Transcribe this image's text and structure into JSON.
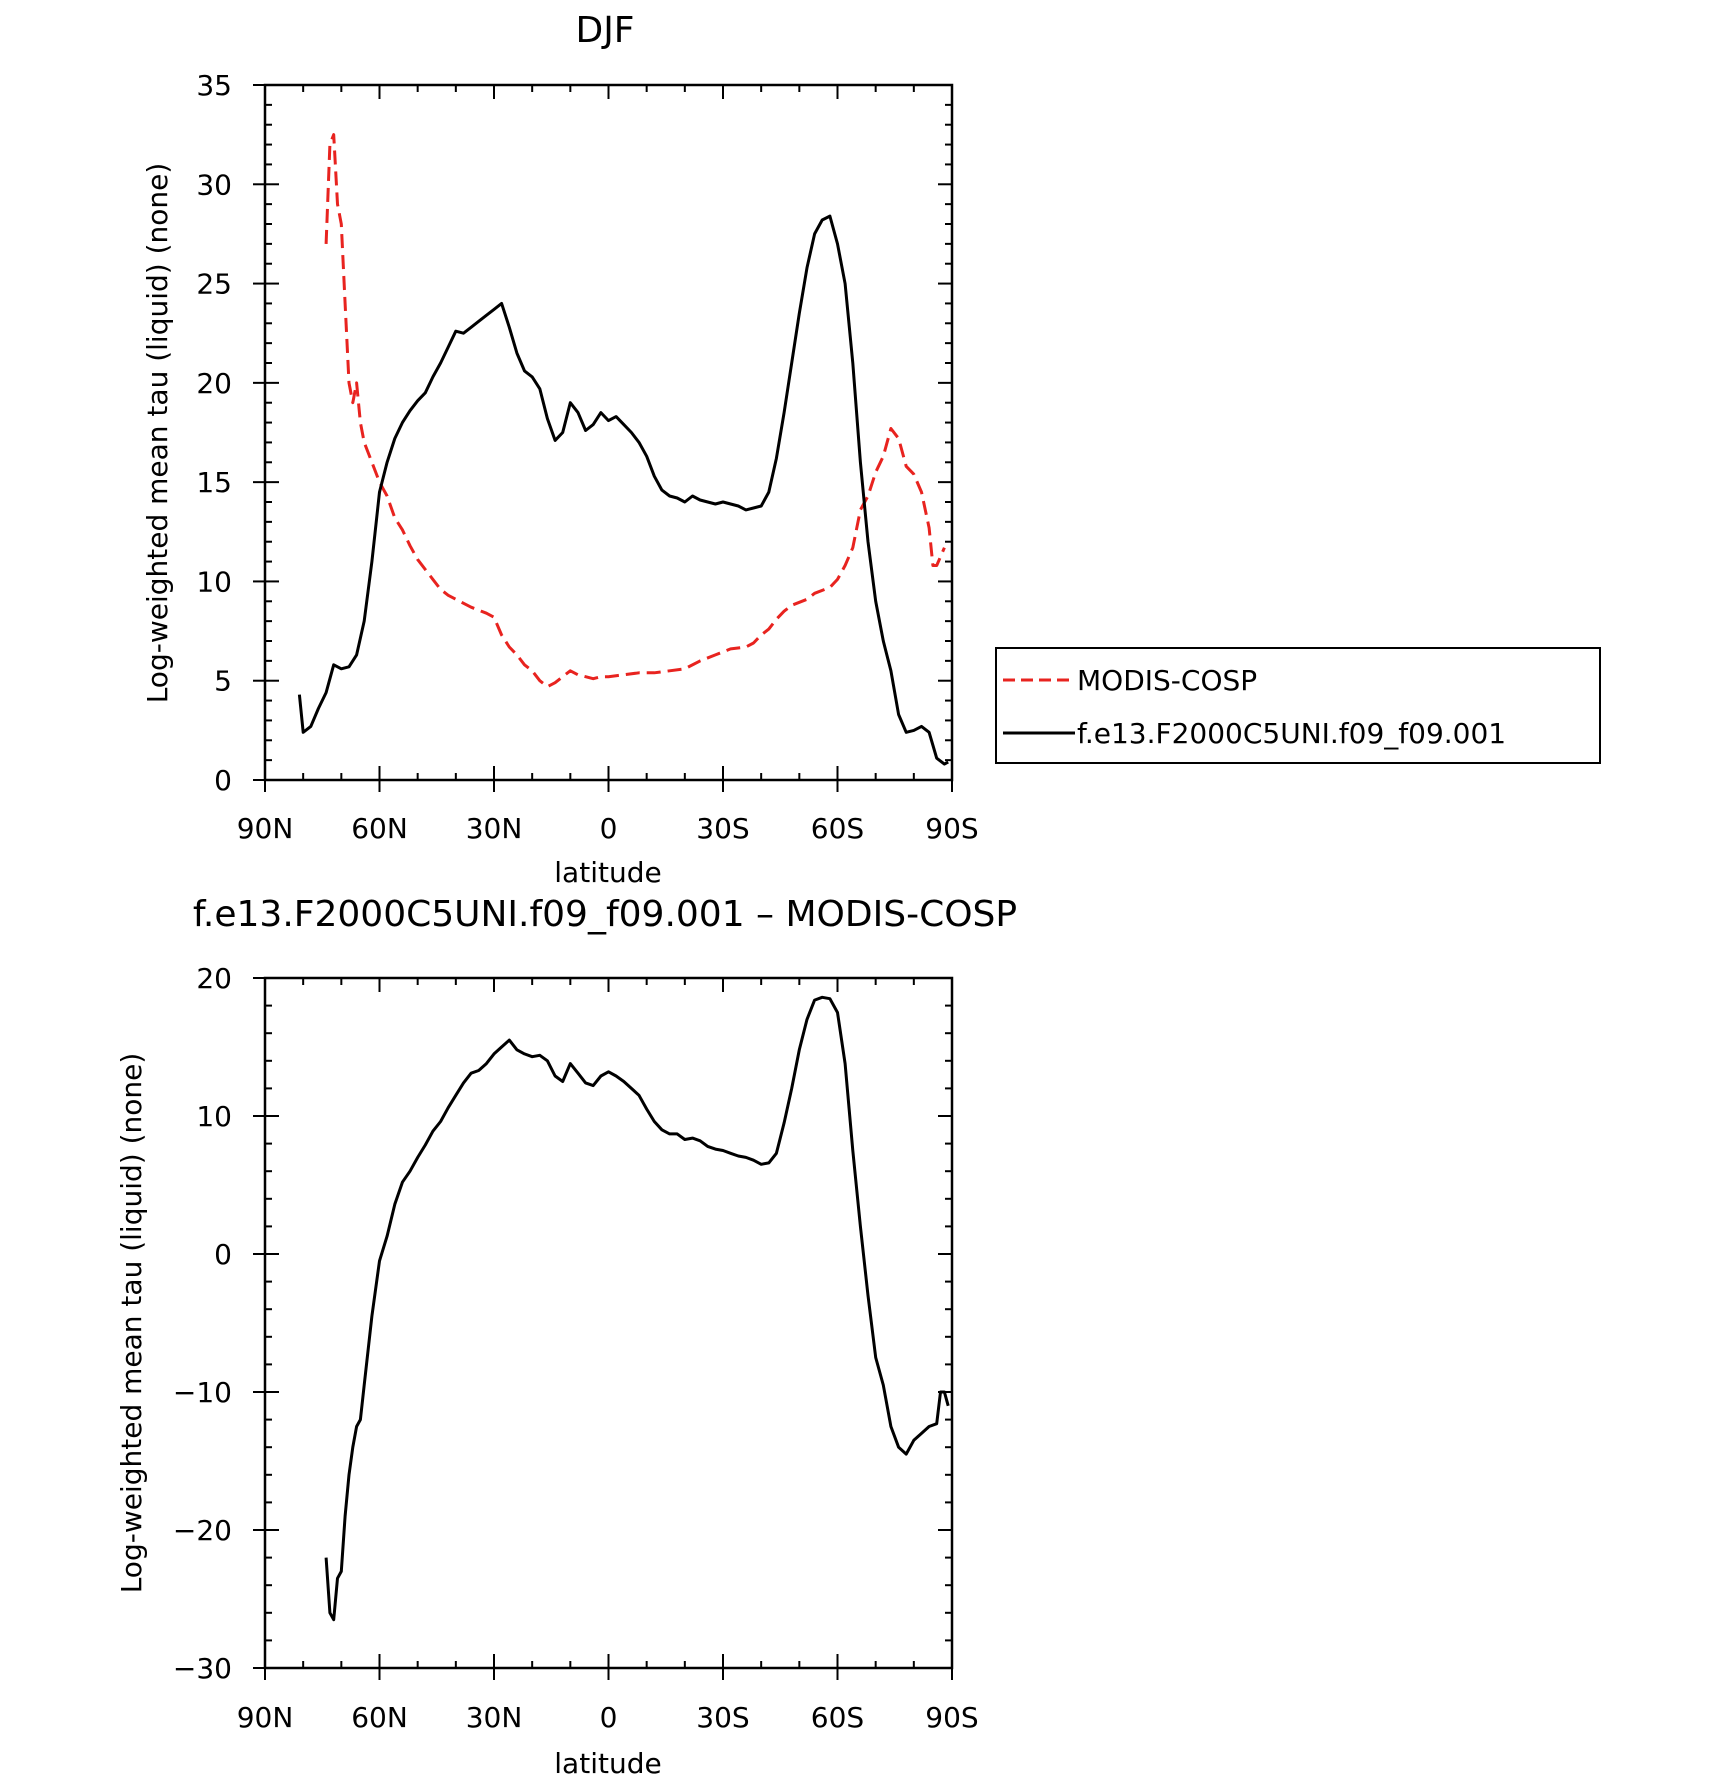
{
  "chart_data": [
    {
      "type": "line",
      "title": "DJF",
      "xlabel": "latitude",
      "ylabel": "Log-weighted mean tau (liquid) (none)",
      "xlim": [
        90,
        -90
      ],
      "ylim": [
        0,
        35
      ],
      "xticks": [
        {
          "value": 90,
          "label": "90N"
        },
        {
          "value": 60,
          "label": "60N"
        },
        {
          "value": 30,
          "label": "30N"
        },
        {
          "value": 0,
          "label": "0"
        },
        {
          "value": -30,
          "label": "30S"
        },
        {
          "value": -60,
          "label": "60S"
        },
        {
          "value": -90,
          "label": "90S"
        }
      ],
      "yticks": [
        0,
        5,
        10,
        15,
        20,
        25,
        30,
        35
      ],
      "legend": [
        {
          "name": "MODIS-COSP",
          "color": "#e8231f",
          "dashed": true
        },
        {
          "name": "f.e13.F2000C5UNI.f09_f09.001",
          "color": "#000000",
          "dashed": false
        }
      ],
      "series": [
        {
          "name": "MODIS-COSP",
          "color": "#e8231f",
          "dashed": true,
          "points": [
            [
              74,
              27
            ],
            [
              73,
              32
            ],
            [
              72,
              32.5
            ],
            [
              71,
              29
            ],
            [
              70,
              28
            ],
            [
              69,
              24
            ],
            [
              68,
              20
            ],
            [
              67,
              19
            ],
            [
              66,
              20
            ],
            [
              65,
              18
            ],
            [
              64,
              17
            ],
            [
              62,
              16
            ],
            [
              60,
              15
            ],
            [
              58,
              14.3
            ],
            [
              56,
              13.2
            ],
            [
              54,
              12.6
            ],
            [
              52,
              11.8
            ],
            [
              50,
              11.1
            ],
            [
              48,
              10.6
            ],
            [
              46,
              10.1
            ],
            [
              44,
              9.6
            ],
            [
              42,
              9.3
            ],
            [
              40,
              9.1
            ],
            [
              36,
              8.7
            ],
            [
              32,
              8.4
            ],
            [
              30,
              8.2
            ],
            [
              28,
              7.3
            ],
            [
              26,
              6.7
            ],
            [
              24,
              6.3
            ],
            [
              22,
              5.8
            ],
            [
              20,
              5.5
            ],
            [
              18,
              5
            ],
            [
              16,
              4.7
            ],
            [
              14,
              4.9
            ],
            [
              12,
              5.2
            ],
            [
              10,
              5.5
            ],
            [
              8,
              5.3
            ],
            [
              6,
              5.2
            ],
            [
              4,
              5.1
            ],
            [
              2,
              5.2
            ],
            [
              0,
              5.2
            ],
            [
              -4,
              5.3
            ],
            [
              -8,
              5.4
            ],
            [
              -12,
              5.4
            ],
            [
              -16,
              5.5
            ],
            [
              -20,
              5.6
            ],
            [
              -24,
              6
            ],
            [
              -28,
              6.3
            ],
            [
              -32,
              6.6
            ],
            [
              -36,
              6.7
            ],
            [
              -38,
              6.9
            ],
            [
              -40,
              7.3
            ],
            [
              -42,
              7.6
            ],
            [
              -44,
              8.1
            ],
            [
              -46,
              8.5
            ],
            [
              -48,
              8.8
            ],
            [
              -52,
              9.1
            ],
            [
              -54,
              9.4
            ],
            [
              -58,
              9.7
            ],
            [
              -60,
              10.1
            ],
            [
              -62,
              10.8
            ],
            [
              -64,
              11.7
            ],
            [
              -66,
              13.6
            ],
            [
              -68,
              14.3
            ],
            [
              -70,
              15.5
            ],
            [
              -72,
              16.3
            ],
            [
              -74,
              17.7
            ],
            [
              -76,
              17.2
            ],
            [
              -78,
              15.8
            ],
            [
              -80,
              15.4
            ],
            [
              -82,
              14.5
            ],
            [
              -84,
              12.7
            ],
            [
              -85,
              10.8
            ],
            [
              -86,
              10.8
            ],
            [
              -88,
              11.7
            ]
          ]
        },
        {
          "name": "f.e13.F2000C5UNI.f09_f09.001",
          "color": "#000000",
          "dashed": false,
          "points": [
            [
              81,
              4.3
            ],
            [
              80,
              2.4
            ],
            [
              78,
              2.7
            ],
            [
              76,
              3.6
            ],
            [
              74,
              4.4
            ],
            [
              72,
              5.8
            ],
            [
              70,
              5.6
            ],
            [
              68,
              5.7
            ],
            [
              66,
              6.3
            ],
            [
              64,
              8
            ],
            [
              62,
              11
            ],
            [
              60,
              14.5
            ],
            [
              58,
              16
            ],
            [
              56,
              17.2
            ],
            [
              54,
              18
            ],
            [
              52,
              18.6
            ],
            [
              50,
              19.1
            ],
            [
              48,
              19.5
            ],
            [
              46,
              20.3
            ],
            [
              44,
              21
            ],
            [
              42,
              21.8
            ],
            [
              40,
              22.6
            ],
            [
              38,
              22.5
            ],
            [
              36,
              22.8
            ],
            [
              34,
              23.1
            ],
            [
              32,
              23.4
            ],
            [
              30,
              23.7
            ],
            [
              28,
              24
            ],
            [
              26,
              22.8
            ],
            [
              24,
              21.5
            ],
            [
              22,
              20.6
            ],
            [
              20,
              20.3
            ],
            [
              18,
              19.7
            ],
            [
              16,
              18.2
            ],
            [
              14,
              17.1
            ],
            [
              12,
              17.5
            ],
            [
              10,
              19
            ],
            [
              8,
              18.5
            ],
            [
              6,
              17.6
            ],
            [
              4,
              17.9
            ],
            [
              2,
              18.5
            ],
            [
              0,
              18.1
            ],
            [
              -2,
              18.3
            ],
            [
              -4,
              17.9
            ],
            [
              -6,
              17.5
            ],
            [
              -8,
              17
            ],
            [
              -10,
              16.3
            ],
            [
              -12,
              15.3
            ],
            [
              -14,
              14.6
            ],
            [
              -16,
              14.3
            ],
            [
              -18,
              14.2
            ],
            [
              -20,
              14
            ],
            [
              -22,
              14.3
            ],
            [
              -24,
              14.1
            ],
            [
              -26,
              14
            ],
            [
              -28,
              13.9
            ],
            [
              -30,
              14
            ],
            [
              -32,
              13.9
            ],
            [
              -34,
              13.8
            ],
            [
              -36,
              13.6
            ],
            [
              -38,
              13.7
            ],
            [
              -40,
              13.8
            ],
            [
              -42,
              14.5
            ],
            [
              -44,
              16.2
            ],
            [
              -46,
              18.5
            ],
            [
              -48,
              21
            ],
            [
              -50,
              23.5
            ],
            [
              -52,
              25.8
            ],
            [
              -54,
              27.5
            ],
            [
              -56,
              28.2
            ],
            [
              -58,
              28.4
            ],
            [
              -60,
              27
            ],
            [
              -62,
              25
            ],
            [
              -64,
              21
            ],
            [
              -66,
              16
            ],
            [
              -68,
              12
            ],
            [
              -70,
              9
            ],
            [
              -72,
              7
            ],
            [
              -74,
              5.5
            ],
            [
              -76,
              3.3
            ],
            [
              -78,
              2.4
            ],
            [
              -80,
              2.5
            ],
            [
              -82,
              2.7
            ],
            [
              -84,
              2.4
            ],
            [
              -86,
              1.1
            ],
            [
              -88,
              0.8
            ],
            [
              -89,
              0.9
            ]
          ]
        }
      ]
    },
    {
      "type": "line",
      "title": "f.e13.F2000C5UNI.f09_f09.001 – MODIS-COSP",
      "xlabel": "latitude",
      "ylabel": "Log-weighted mean tau (liquid) (none)",
      "xlim": [
        90,
        -90
      ],
      "ylim": [
        -30,
        20
      ],
      "xticks": [
        {
          "value": 90,
          "label": "90N"
        },
        {
          "value": 60,
          "label": "60N"
        },
        {
          "value": 30,
          "label": "30N"
        },
        {
          "value": 0,
          "label": "0"
        },
        {
          "value": -30,
          "label": "30S"
        },
        {
          "value": -60,
          "label": "60S"
        },
        {
          "value": -90,
          "label": "90S"
        }
      ],
      "yticks": [
        {
          "value": -30,
          "label": "−30"
        },
        {
          "value": -20,
          "label": "−20"
        },
        {
          "value": -10,
          "label": "−10"
        },
        {
          "value": 0,
          "label": "0"
        },
        {
          "value": 10,
          "label": "10"
        },
        {
          "value": 20,
          "label": "20"
        }
      ],
      "series": [
        {
          "name": "f.e13.F2000C5UNI.f09_f09.001 – MODIS-COSP",
          "color": "#000000",
          "dashed": false,
          "points": [
            [
              74,
              -22
            ],
            [
              73,
              -26
            ],
            [
              72,
              -26.5
            ],
            [
              71,
              -23.5
            ],
            [
              70,
              -23
            ],
            [
              69,
              -19
            ],
            [
              68,
              -16
            ],
            [
              67,
              -14
            ],
            [
              66,
              -12.5
            ],
            [
              65,
              -12
            ],
            [
              64,
              -9.5
            ],
            [
              62,
              -4.5
            ],
            [
              60,
              -0.5
            ],
            [
              58,
              1.3
            ],
            [
              56,
              3.6
            ],
            [
              54,
              5.2
            ],
            [
              52,
              6
            ],
            [
              50,
              7
            ],
            [
              48,
              7.9
            ],
            [
              46,
              8.9
            ],
            [
              44,
              9.6
            ],
            [
              42,
              10.6
            ],
            [
              40,
              11.5
            ],
            [
              38,
              12.4
            ],
            [
              36,
              13.1
            ],
            [
              34,
              13.3
            ],
            [
              32,
              13.8
            ],
            [
              30,
              14.5
            ],
            [
              28,
              15
            ],
            [
              26,
              15.5
            ],
            [
              24,
              14.8
            ],
            [
              22,
              14.5
            ],
            [
              20,
              14.3
            ],
            [
              18,
              14.4
            ],
            [
              16,
              14
            ],
            [
              14,
              12.9
            ],
            [
              12,
              12.5
            ],
            [
              10,
              13.8
            ],
            [
              8,
              13.1
            ],
            [
              6,
              12.4
            ],
            [
              4,
              12.2
            ],
            [
              2,
              12.9
            ],
            [
              0,
              13.2
            ],
            [
              -2,
              12.9
            ],
            [
              -4,
              12.5
            ],
            [
              -6,
              12
            ],
            [
              -8,
              11.5
            ],
            [
              -10,
              10.5
            ],
            [
              -12,
              9.6
            ],
            [
              -14,
              9
            ],
            [
              -16,
              8.7
            ],
            [
              -18,
              8.7
            ],
            [
              -20,
              8.3
            ],
            [
              -22,
              8.4
            ],
            [
              -24,
              8.2
            ],
            [
              -26,
              7.8
            ],
            [
              -28,
              7.6
            ],
            [
              -30,
              7.5
            ],
            [
              -32,
              7.3
            ],
            [
              -34,
              7.1
            ],
            [
              -36,
              7
            ],
            [
              -38,
              6.8
            ],
            [
              -40,
              6.5
            ],
            [
              -42,
              6.6
            ],
            [
              -44,
              7.3
            ],
            [
              -46,
              9.5
            ],
            [
              -48,
              12
            ],
            [
              -50,
              14.8
            ],
            [
              -52,
              17
            ],
            [
              -54,
              18.4
            ],
            [
              -56,
              18.6
            ],
            [
              -58,
              18.5
            ],
            [
              -60,
              17.5
            ],
            [
              -62,
              13.8
            ],
            [
              -64,
              7.5
            ],
            [
              -66,
              2
            ],
            [
              -68,
              -3
            ],
            [
              -70,
              -7.5
            ],
            [
              -72,
              -9.5
            ],
            [
              -74,
              -12.5
            ],
            [
              -76,
              -14
            ],
            [
              -78,
              -14.5
            ],
            [
              -80,
              -13.5
            ],
            [
              -82,
              -13
            ],
            [
              -84,
              -12.5
            ],
            [
              -86,
              -12.3
            ],
            [
              -87,
              -10
            ],
            [
              -88,
              -10
            ],
            [
              -89,
              -11
            ]
          ]
        }
      ]
    }
  ]
}
